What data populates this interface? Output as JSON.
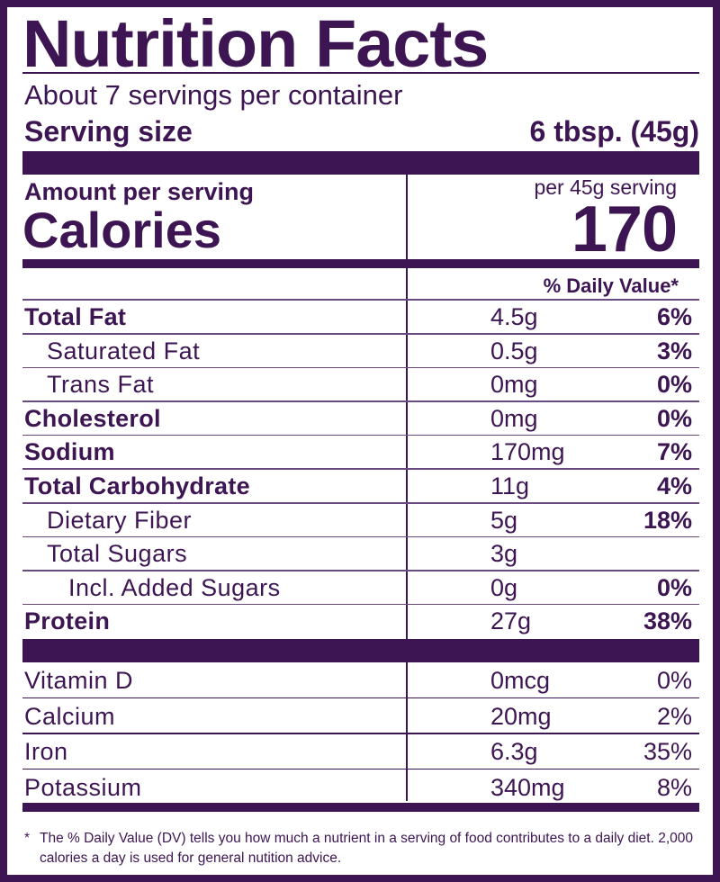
{
  "label": {
    "title": "Nutrition Facts",
    "servings_per_container": "About 7 servings per container",
    "serving_size_label": "Serving size",
    "serving_size_value": "6 tbsp. (45g)",
    "amount_per_serving_label": "Amount per serving",
    "calories_label": "Calories",
    "per_serving_note": "per 45g serving",
    "calories_value": "170",
    "daily_value_header": "% Daily Value*"
  },
  "nutrients": [
    {
      "name": "Total Fat",
      "amount": "4.5g",
      "dv": "6%",
      "bold": true,
      "indent": 0
    },
    {
      "name": "Saturated Fat",
      "amount": "0.5g",
      "dv": "3%",
      "bold": false,
      "indent": 1
    },
    {
      "name": "Trans Fat",
      "amount": "0mg",
      "dv": "0%",
      "bold": false,
      "indent": 1
    },
    {
      "name": "Cholesterol",
      "amount": "0mg",
      "dv": "0%",
      "bold": true,
      "indent": 0
    },
    {
      "name": "Sodium",
      "amount": "170mg",
      "dv": "7%",
      "bold": true,
      "indent": 0
    },
    {
      "name": "Total Carbohydrate",
      "amount": "11g",
      "dv": "4%",
      "bold": true,
      "indent": 0
    },
    {
      "name": "Dietary Fiber",
      "amount": "5g",
      "dv": "18%",
      "bold": false,
      "indent": 1
    },
    {
      "name": "Total Sugars",
      "amount": "3g",
      "dv": "",
      "bold": false,
      "indent": 1
    },
    {
      "name": "Incl. Added Sugars",
      "amount": "0g",
      "dv": "0%",
      "bold": false,
      "indent": 2
    },
    {
      "name": "Protein",
      "amount": "27g",
      "dv": "38%",
      "bold": true,
      "indent": 0
    }
  ],
  "vitamins": [
    {
      "name": "Vitamin D",
      "amount": "0mcg",
      "dv": "0%"
    },
    {
      "name": "Calcium",
      "amount": "20mg",
      "dv": "2%"
    },
    {
      "name": "Iron",
      "amount": "6.3g",
      "dv": "35%"
    },
    {
      "name": "Potassium",
      "amount": "340mg",
      "dv": "8%"
    }
  ],
  "footnote": {
    "marker": "*",
    "text": "The % Daily Value (DV) tells you how much a nutrient in a serving of food contributes to a daily diet. 2,000 calories a day is used for general nutition advice."
  },
  "colors": {
    "brand": "#3d1552",
    "background": "#ffffff"
  }
}
